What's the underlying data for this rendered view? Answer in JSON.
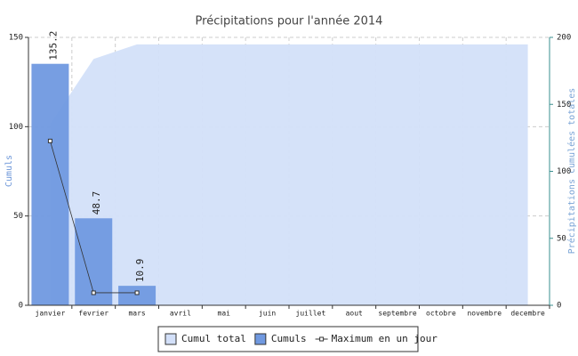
{
  "chart_data": {
    "type": "combo",
    "title": "Précipitations pour l'année 2014",
    "categories": [
      "janvier",
      "fevrier",
      "mars",
      "avril",
      "mai",
      "juin",
      "juillet",
      "aout",
      "septembre",
      "octobre",
      "novembre",
      "decembre"
    ],
    "ylabel": "Cumuls",
    "y2label": "Précipitations cumulées totales",
    "ylim": [
      0,
      150
    ],
    "yticks": [
      0,
      50,
      100,
      150
    ],
    "y2lim": [
      0,
      200
    ],
    "y2ticks": [
      0,
      50,
      100,
      150,
      200
    ],
    "grid": true,
    "series": [
      {
        "name": "Cumul total",
        "kind": "area",
        "axis": "y2",
        "color": "#d3e0f9",
        "values": [
          135.2,
          183.9,
          194.8,
          194.8,
          194.8,
          194.8,
          194.8,
          194.8,
          194.8,
          194.8,
          194.8,
          194.8
        ]
      },
      {
        "name": "Cumuls",
        "kind": "bar",
        "color": "#7099e0",
        "values": [
          135.2,
          48.7,
          10.9,
          null,
          null,
          null,
          null,
          null,
          null,
          null,
          null,
          null
        ]
      },
      {
        "name": "Maximum en un jour",
        "kind": "line",
        "color": "#333333",
        "values": [
          92,
          7,
          7,
          null,
          null,
          null,
          null,
          null,
          null,
          null,
          null,
          null
        ]
      }
    ]
  }
}
